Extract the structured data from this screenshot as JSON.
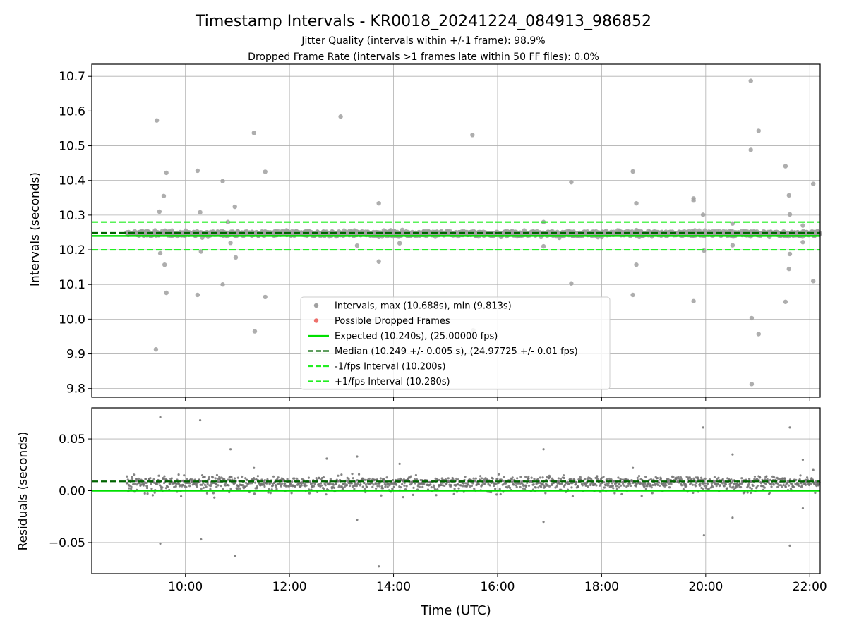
{
  "figure": {
    "title": "Timestamp Intervals - KR0018_20241224_084913_986852",
    "subtitle_1": "Jitter Quality (intervals within +/-1 frame): 98.9%",
    "subtitle_2": "Dropped Frame Rate (intervals >1 frames late within 50 FF files): 0.0%"
  },
  "chart_data": [
    {
      "type": "scatter",
      "ylabel": "Intervals (seconds)",
      "xlim": [
        "08:12",
        "22:12"
      ],
      "ylim": [
        9.775,
        10.735
      ],
      "grid": true,
      "x_tick_hours": [
        10,
        12,
        14,
        16,
        18,
        20,
        22
      ],
      "yticks": [
        "9.8",
        "9.9",
        "10.0",
        "10.1",
        "10.2",
        "10.3",
        "10.4",
        "10.5",
        "10.6",
        "10.7"
      ],
      "ytick_values": [
        9.8,
        9.9,
        10.0,
        10.1,
        10.2,
        10.3,
        10.4,
        10.5,
        10.6,
        10.7
      ],
      "legend_position": "lower-center",
      "colors": {
        "intervals": "#808080",
        "dropped": "#e8403a",
        "expected": "#00e000",
        "median": "#006400",
        "bounds": "#22ee22"
      },
      "series": [
        {
          "name": "Intervals, max (10.688s), min (9.813s)",
          "kind": "points",
          "color": "#808080"
        },
        {
          "name": "Possible Dropped Frames",
          "kind": "points",
          "color": "#e8403a",
          "points": []
        },
        {
          "name": "Expected (10.240s), (25.00000 fps)",
          "kind": "hline",
          "y": 10.24,
          "color": "#00e000",
          "style": "solid"
        },
        {
          "name": "Median (10.249 +/- 0.005 s), (24.97725 +/- 0.01 fps)",
          "kind": "hline",
          "y": 10.249,
          "color": "#006400",
          "style": "dashed"
        },
        {
          "name": "-1/fps Interval (10.200s)",
          "kind": "hline",
          "y": 10.2,
          "color": "#22ee22",
          "style": "dashed"
        },
        {
          "name": "+1/fps Interval (10.280s)",
          "kind": "hline",
          "y": 10.28,
          "color": "#22ee22",
          "style": "dashed"
        }
      ],
      "band": {
        "x_start": "08:52",
        "x_end": "22:12",
        "center": 10.247,
        "spread": 0.01
      },
      "outliers": [
        [
          "09:27",
          10.573
        ],
        [
          "09:30",
          10.31
        ],
        [
          "09:31",
          10.19
        ],
        [
          "09:35",
          10.355
        ],
        [
          "09:36",
          10.157
        ],
        [
          "09:38",
          10.422
        ],
        [
          "09:38",
          10.076
        ],
        [
          "09:26",
          9.913
        ],
        [
          "10:14",
          10.428
        ],
        [
          "10:17",
          10.308
        ],
        [
          "10:18",
          10.195
        ],
        [
          "10:14",
          10.07
        ],
        [
          "10:43",
          10.398
        ],
        [
          "10:43",
          10.1
        ],
        [
          "10:49",
          10.28
        ],
        [
          "10:52",
          10.22
        ],
        [
          "10:57",
          10.324
        ],
        [
          "10:58",
          10.178
        ],
        [
          "11:19",
          10.537
        ],
        [
          "11:32",
          10.425
        ],
        [
          "11:32",
          10.064
        ],
        [
          "11:20",
          9.965
        ],
        [
          "12:59",
          10.584
        ],
        [
          "13:18",
          10.212
        ],
        [
          "13:43",
          10.334
        ],
        [
          "13:43",
          10.166
        ],
        [
          "14:07",
          10.219
        ],
        [
          "15:31",
          10.531
        ],
        [
          "15:32",
          9.968
        ],
        [
          "16:53",
          10.21
        ],
        [
          "16:53",
          10.28
        ],
        [
          "17:25",
          10.395
        ],
        [
          "17:25",
          10.103
        ],
        [
          "18:36",
          10.426
        ],
        [
          "18:40",
          10.334
        ],
        [
          "18:40",
          10.157
        ],
        [
          "18:36",
          10.07
        ],
        [
          "19:46",
          10.342
        ],
        [
          "19:46",
          10.348
        ],
        [
          "19:46",
          10.052
        ],
        [
          "19:57",
          10.301
        ],
        [
          "19:58",
          10.198
        ],
        [
          "20:31",
          10.276
        ],
        [
          "20:31",
          10.213
        ],
        [
          "20:52",
          10.687
        ],
        [
          "20:52",
          10.488
        ],
        [
          "21:01",
          10.543
        ],
        [
          "21:01",
          9.957
        ],
        [
          "20:53",
          10.003
        ],
        [
          "20:53",
          9.813
        ],
        [
          "21:32",
          10.441
        ],
        [
          "21:32",
          10.05
        ],
        [
          "21:36",
          10.357
        ],
        [
          "21:37",
          10.302
        ],
        [
          "21:37",
          10.188
        ],
        [
          "21:36",
          10.145
        ],
        [
          "21:52",
          10.27
        ],
        [
          "21:52",
          10.222
        ],
        [
          "22:04",
          10.39
        ],
        [
          "22:04",
          10.11
        ]
      ]
    },
    {
      "type": "scatter",
      "xlabel": "Time (UTC)",
      "ylabel": "Residuals (seconds)",
      "xlim": [
        "08:12",
        "22:12"
      ],
      "ylim": [
        -0.08,
        0.08
      ],
      "grid": true,
      "x_tick_hours": [
        10,
        12,
        14,
        16,
        18,
        20,
        22
      ],
      "xticks": [
        "10:00",
        "12:00",
        "14:00",
        "16:00",
        "18:00",
        "20:00",
        "22:00"
      ],
      "yticks": [
        "−0.05",
        "0.00",
        "0.05"
      ],
      "ytick_values": [
        -0.05,
        0.0,
        0.05
      ],
      "lines": [
        {
          "y": 0.0,
          "color": "#00e000",
          "style": "solid"
        },
        {
          "y": 0.009,
          "color": "#006400",
          "style": "dashed"
        }
      ],
      "band": {
        "x_start": "08:52",
        "x_end": "22:12",
        "center": 0.008,
        "spread": 0.007
      },
      "outliers": [
        [
          "09:31",
          0.071
        ],
        [
          "10:17",
          0.068
        ],
        [
          "09:31",
          -0.051
        ],
        [
          "10:18",
          -0.047
        ],
        [
          "10:57",
          -0.063
        ],
        [
          "10:52",
          0.04
        ],
        [
          "12:43",
          0.031
        ],
        [
          "13:18",
          0.033
        ],
        [
          "13:18",
          -0.028
        ],
        [
          "13:43",
          -0.073
        ],
        [
          "16:53",
          0.04
        ],
        [
          "16:53",
          -0.03
        ],
        [
          "19:57",
          0.061
        ],
        [
          "19:58",
          -0.043
        ],
        [
          "20:31",
          0.035
        ],
        [
          "20:31",
          -0.026
        ],
        [
          "21:37",
          0.061
        ],
        [
          "21:37",
          -0.053
        ],
        [
          "21:52",
          -0.017
        ],
        [
          "21:52",
          0.03
        ],
        [
          "22:04",
          0.02
        ],
        [
          "14:07",
          0.026
        ],
        [
          "18:36",
          0.022
        ],
        [
          "11:19",
          0.022
        ]
      ]
    }
  ]
}
